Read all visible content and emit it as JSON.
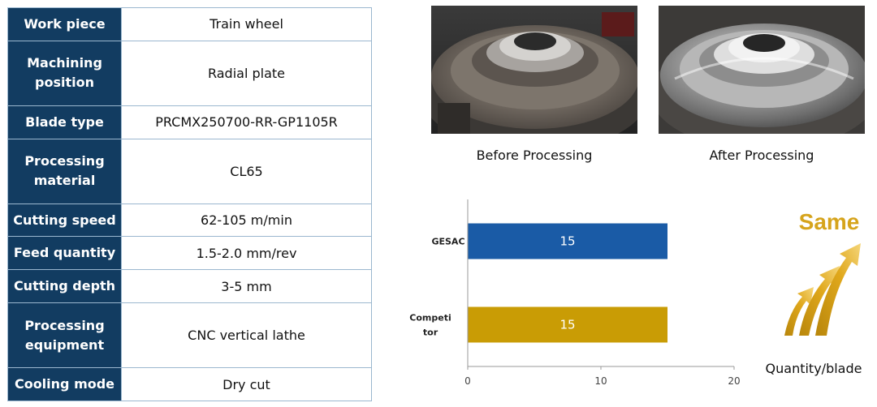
{
  "table": {
    "rows": [
      {
        "label": "Work piece",
        "value": "Train wheel"
      },
      {
        "label": "Machining position",
        "value": "Radial plate"
      },
      {
        "label": "Blade type",
        "value": "PRCMX250700-RR-GP1105R"
      },
      {
        "label": "Processing material",
        "value": "CL65"
      },
      {
        "label": "Cutting speed",
        "value": "62-105 m/min"
      },
      {
        "label": "Feed quantity",
        "value": "1.5-2.0 mm/rev"
      },
      {
        "label": "Cutting depth",
        "value": "3-5 mm"
      },
      {
        "label": "Processing equipment",
        "value": "CNC vertical lathe"
      },
      {
        "label": "Cooling mode",
        "value": "Dry cut"
      }
    ]
  },
  "photos": {
    "before_caption": "Before Processing",
    "after_caption": "After Processing"
  },
  "chart_data": {
    "type": "bar",
    "orientation": "horizontal",
    "categories": [
      "GESAC",
      "Competitor"
    ],
    "category_labels": [
      [
        "GESAC"
      ],
      [
        "Competi",
        "tor"
      ]
    ],
    "values": [
      15,
      15
    ],
    "data_labels": [
      "15",
      "15"
    ],
    "colors": [
      "#1a5ba6",
      "#c99c05"
    ],
    "xlim": [
      0,
      20
    ],
    "xticks": [
      0,
      10,
      20
    ],
    "title": "",
    "xlabel": "",
    "ylabel": "",
    "grid": false,
    "legend": "none"
  },
  "badge": {
    "text": "Same",
    "icon": "rising-arrows-icon",
    "color": "#d6a41c"
  },
  "metric_label": "Quantity/blade"
}
